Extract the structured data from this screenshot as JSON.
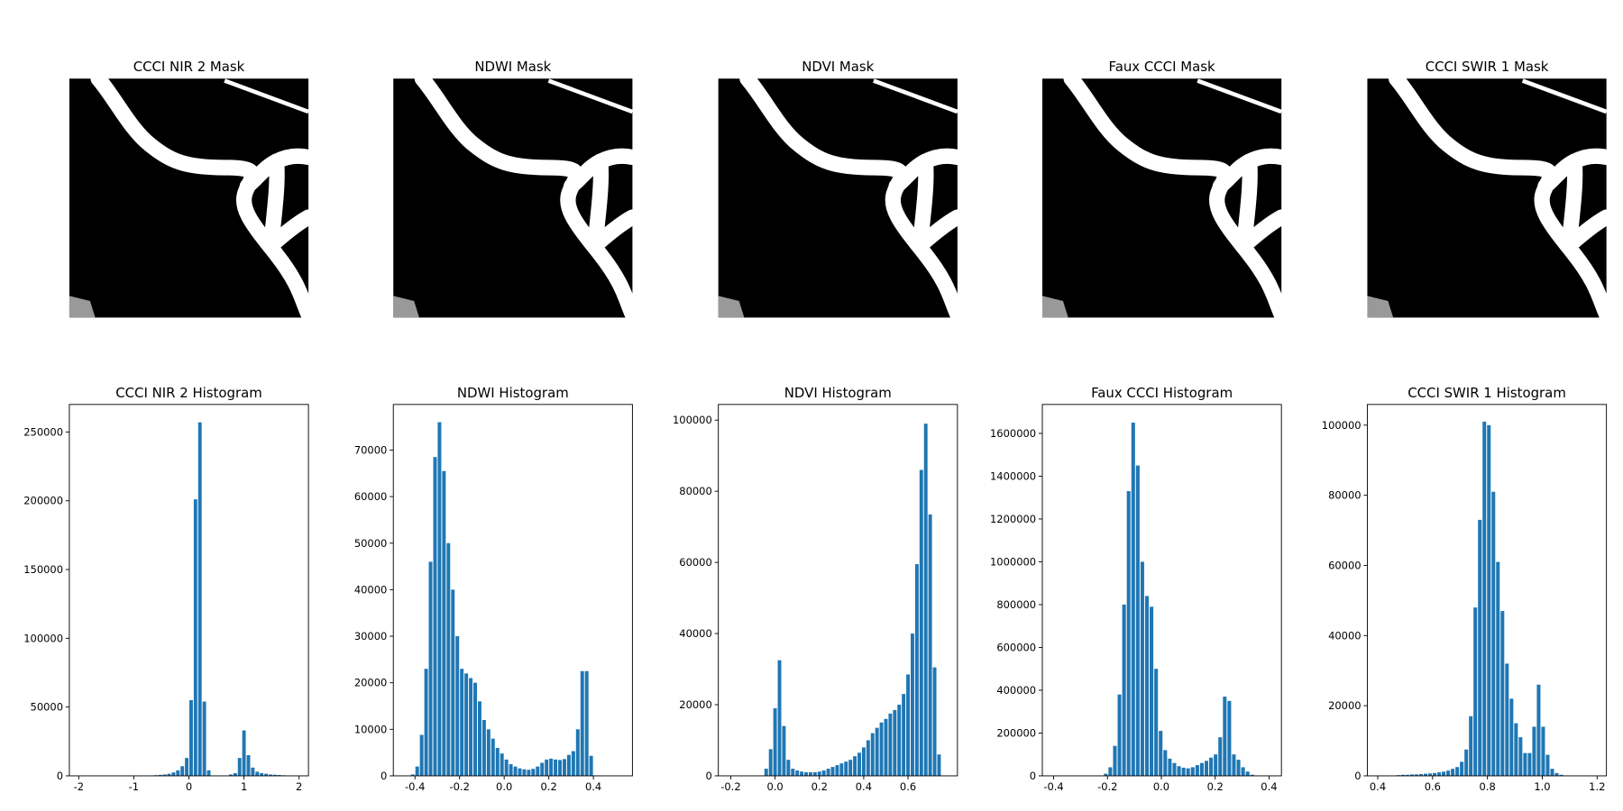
{
  "chart_data": [
    {
      "type": "image",
      "title": "CCCI NIR 2 Mask"
    },
    {
      "type": "image",
      "title": "NDWI Mask"
    },
    {
      "type": "image",
      "title": "NDVI Mask"
    },
    {
      "type": "image",
      "title": "Faux CCCI Mask"
    },
    {
      "type": "image",
      "title": "CCCI SWIR 1 Mask"
    },
    {
      "type": "histogram",
      "title": "CCCI NIR 2 Histogram",
      "color": "#1f77b4",
      "bins": [
        -2,
        -1.92,
        -1.84,
        -1.76,
        -1.68,
        -1.6,
        -1.52,
        -1.44,
        -1.36,
        -1.28,
        -1.2,
        -1.12,
        -1.04,
        -0.96,
        -0.88,
        -0.8,
        -0.72,
        -0.64,
        -0.56,
        -0.48,
        -0.4,
        -0.32,
        -0.24,
        -0.16,
        -0.08,
        0,
        0.08,
        0.16,
        0.24,
        0.32,
        0.4,
        0.48,
        0.56,
        0.64,
        0.72,
        0.8,
        0.88,
        0.96,
        1.04,
        1.12,
        1.2,
        1.28,
        1.36,
        1.44,
        1.52,
        1.6,
        1.68,
        1.76,
        1.84,
        1.92,
        2
      ],
      "values": [
        0,
        0,
        0,
        0,
        0,
        0,
        0,
        0,
        0,
        0,
        0,
        0,
        50,
        100,
        150,
        200,
        300,
        500,
        700,
        1000,
        1500,
        2500,
        4000,
        7000,
        13000,
        55000,
        201000,
        257000,
        54000,
        4000,
        300,
        200,
        200,
        300,
        1000,
        2000,
        13000,
        33000,
        15000,
        6000,
        3000,
        2000,
        1500,
        1000,
        800,
        600,
        400,
        300,
        200,
        100
      ],
      "xlim": [
        -2.17,
        2.17
      ],
      "xticks": [
        -2,
        -1,
        0,
        1,
        2
      ],
      "ylim": [
        0,
        270000
      ],
      "yticks": [
        0,
        50000,
        100000,
        150000,
        200000,
        250000
      ]
    },
    {
      "type": "histogram",
      "title": "NDWI Histogram",
      "color": "#1f77b4",
      "bins": [
        -0.42,
        -0.4,
        -0.38,
        -0.36,
        -0.34,
        -0.32,
        -0.3,
        -0.28,
        -0.26,
        -0.24,
        -0.22,
        -0.2,
        -0.18,
        -0.16,
        -0.14,
        -0.12,
        -0.1,
        -0.08,
        -0.06,
        -0.04,
        -0.02,
        0,
        0.02,
        0.04,
        0.06,
        0.08,
        0.1,
        0.12,
        0.14,
        0.16,
        0.18,
        0.2,
        0.22,
        0.24,
        0.26,
        0.28,
        0.3,
        0.32,
        0.34,
        0.36,
        0.38,
        0.4
      ],
      "values": [
        300,
        2000,
        8800,
        23000,
        46000,
        68500,
        76000,
        65500,
        50000,
        40000,
        30000,
        23000,
        22000,
        21000,
        20000,
        16000,
        12000,
        10000,
        8000,
        6000,
        4800,
        3500,
        2500,
        2000,
        1600,
        1400,
        1300,
        1500,
        2000,
        2800,
        3500,
        3700,
        3500,
        3400,
        3600,
        4500,
        5300,
        10000,
        22500,
        22500,
        4300
      ],
      "xlim": [
        -0.497,
        0.575
      ],
      "xticks": [
        -0.4,
        -0.2,
        {
          "value": 0,
          "label": "0.0"
        },
        0.2,
        0.4
      ],
      "ylim": [
        0,
        79800
      ],
      "yticks": [
        0,
        10000,
        20000,
        30000,
        40000,
        50000,
        60000,
        70000
      ]
    },
    {
      "type": "histogram",
      "title": "NDVI Histogram",
      "color": "#1f77b4",
      "bins": [
        -0.05,
        -0.03,
        -0.01,
        0.01,
        0.03,
        0.05,
        0.07,
        0.09,
        0.11,
        0.13,
        0.15,
        0.17,
        0.19,
        0.21,
        0.23,
        0.25,
        0.27,
        0.29,
        0.31,
        0.33,
        0.35,
        0.37,
        0.39,
        0.41,
        0.43,
        0.45,
        0.47,
        0.49,
        0.51,
        0.53,
        0.55,
        0.57,
        0.59,
        0.61,
        0.63,
        0.65,
        0.67,
        0.69,
        0.71,
        0.73,
        0.75
      ],
      "values": [
        2000,
        7500,
        19000,
        32500,
        14000,
        4500,
        2000,
        1500,
        1200,
        1000,
        1000,
        1000,
        1200,
        1500,
        2000,
        2500,
        3000,
        3500,
        4000,
        4500,
        5500,
        6500,
        8000,
        10000,
        12000,
        13500,
        15000,
        16000,
        17500,
        18500,
        20000,
        23000,
        28500,
        40000,
        59500,
        86000,
        99000,
        73500,
        30500,
        6000
      ],
      "xlim": [
        -0.256,
        0.823
      ],
      "xticks": [
        -0.2,
        {
          "value": 0,
          "label": "0.0"
        },
        0.2,
        0.4,
        0.6
      ],
      "ylim": [
        0,
        104400
      ],
      "yticks": [
        0,
        20000,
        40000,
        60000,
        80000,
        100000
      ]
    },
    {
      "type": "histogram",
      "title": "Faux CCCI Histogram",
      "color": "#1f77b4",
      "bins": [
        -0.215,
        -0.198,
        -0.181,
        -0.164,
        -0.147,
        -0.13,
        -0.113,
        -0.096,
        -0.079,
        -0.062,
        -0.045,
        -0.028,
        -0.011,
        0.006,
        0.023,
        0.04,
        0.057,
        0.074,
        0.091,
        0.108,
        0.125,
        0.142,
        0.159,
        0.176,
        0.193,
        0.21,
        0.227,
        0.244,
        0.261,
        0.278,
        0.295,
        0.312,
        0.329,
        0.346
      ],
      "values": [
        10000,
        40000,
        140000,
        380000,
        800000,
        1330000,
        1650000,
        1450000,
        1000000,
        840000,
        790000,
        500000,
        210000,
        120000,
        80000,
        60000,
        45000,
        38000,
        35000,
        40000,
        50000,
        60000,
        70000,
        85000,
        100000,
        180000,
        370000,
        350000,
        100000,
        75000,
        40000,
        20000,
        5000
      ],
      "xlim": [
        -0.442,
        0.446
      ],
      "xticks": [
        -0.4,
        -0.2,
        {
          "value": 0,
          "label": "0.0"
        },
        0.2,
        0.4
      ],
      "ylim": [
        0,
        1735000
      ],
      "yticks": [
        0,
        200000,
        400000,
        600000,
        800000,
        1000000,
        1200000,
        1400000,
        1600000
      ]
    },
    {
      "type": "histogram",
      "title": "CCCI SWIR 1 Histogram",
      "color": "#1f77b4",
      "bins": [
        0.467,
        0.4835,
        0.5,
        0.5165,
        0.533,
        0.5495,
        0.566,
        0.5825,
        0.599,
        0.6155,
        0.632,
        0.6485,
        0.665,
        0.6815,
        0.698,
        0.7145,
        0.731,
        0.7475,
        0.764,
        0.7805,
        0.797,
        0.8135,
        0.83,
        0.8465,
        0.863,
        0.8795,
        0.896,
        0.9125,
        0.929,
        0.9455,
        0.962,
        0.9785,
        0.995,
        1.0115,
        1.028,
        1.0445,
        1.061,
        1.0775,
        1.094
      ],
      "values": [
        200,
        300,
        300,
        400,
        400,
        500,
        600,
        700,
        800,
        1000,
        1200,
        1500,
        2000,
        2500,
        4000,
        7500,
        17000,
        48000,
        73000,
        101000,
        100000,
        81000,
        61000,
        47000,
        32000,
        22000,
        15000,
        11000,
        6500,
        6500,
        14000,
        26000,
        14000,
        6000,
        2000,
        800,
        300,
        100
      ],
      "xlim": [
        0.362,
        1.234
      ],
      "xticks": [
        0.4,
        0.6,
        0.8,
        {
          "value": 1,
          "label": "1.0"
        },
        1.2
      ],
      "ylim": [
        0,
        105900
      ],
      "yticks": [
        0,
        20000,
        40000,
        60000,
        80000,
        100000
      ]
    }
  ]
}
